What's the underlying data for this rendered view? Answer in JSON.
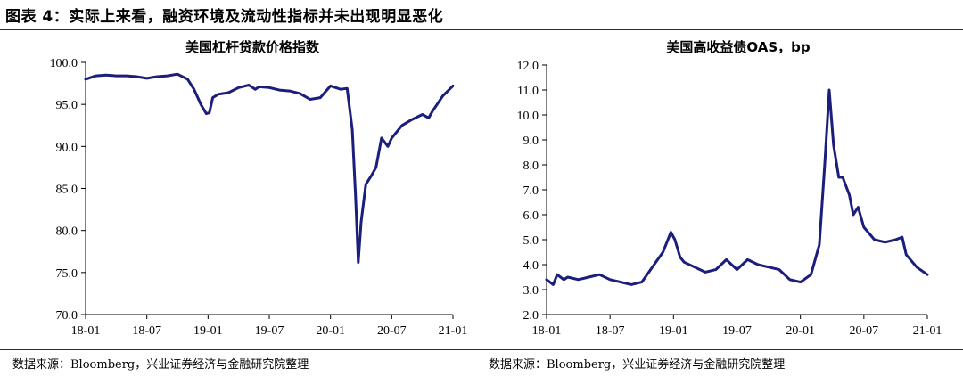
{
  "figure": {
    "title": "图表 4：实际上来看，融资环境及流动性指标并未出现明显恶化",
    "accent_color": "#1f2a5a",
    "line_color": "#1b1e7a"
  },
  "sources": {
    "left": "数据来源：Bloomberg，兴业证券经济与金融研究院整理",
    "right": "数据来源：Bloomberg，兴业证券经济与金融研究院整理"
  },
  "chart_data": [
    {
      "type": "line",
      "title": "美国杠杆贷款价格指数",
      "xlabel": "",
      "ylabel": "",
      "ylim": [
        70,
        100
      ],
      "yticks": [
        "70.0",
        "75.0",
        "80.0",
        "85.0",
        "90.0",
        "95.0",
        "100.0"
      ],
      "xticks": [
        "18-01",
        "18-07",
        "19-01",
        "19-07",
        "20-01",
        "20-07",
        "21-01"
      ],
      "xrange": [
        "2018-01",
        "2021-01"
      ],
      "grid": false,
      "series": [
        {
          "points": [
            [
              "2018-01",
              98.0
            ],
            [
              "2018-02",
              98.4
            ],
            [
              "2018-03",
              98.5
            ],
            [
              "2018-04",
              98.4
            ],
            [
              "2018-05",
              98.4
            ],
            [
              "2018-06",
              98.3
            ],
            [
              "2018-07",
              98.1
            ],
            [
              "2018-08",
              98.3
            ],
            [
              "2018-09",
              98.4
            ],
            [
              "2018-10",
              98.6
            ],
            [
              "2018-11",
              98.0
            ],
            [
              "2018-11-20",
              96.8
            ],
            [
              "2018-12-10",
              95.0
            ],
            [
              "2018-12-26",
              93.9
            ],
            [
              "2019-01-05",
              94.0
            ],
            [
              "2019-01-15",
              95.8
            ],
            [
              "2019-02",
              96.2
            ],
            [
              "2019-03",
              96.4
            ],
            [
              "2019-04",
              97.0
            ],
            [
              "2019-05",
              97.3
            ],
            [
              "2019-05-20",
              96.8
            ],
            [
              "2019-06",
              97.1
            ],
            [
              "2019-07",
              97.0
            ],
            [
              "2019-08",
              96.7
            ],
            [
              "2019-09",
              96.6
            ],
            [
              "2019-10",
              96.3
            ],
            [
              "2019-11",
              95.6
            ],
            [
              "2019-12",
              95.8
            ],
            [
              "2020-01",
              97.2
            ],
            [
              "2020-02",
              96.8
            ],
            [
              "2020-02-20",
              96.9
            ],
            [
              "2020-03-05",
              92.0
            ],
            [
              "2020-03-15",
              84.0
            ],
            [
              "2020-03-23",
              76.2
            ],
            [
              "2020-04-01",
              81.0
            ],
            [
              "2020-04-15",
              85.5
            ],
            [
              "2020-05",
              86.5
            ],
            [
              "2020-05-15",
              87.5
            ],
            [
              "2020-06",
              91.0
            ],
            [
              "2020-06-20",
              90.0
            ],
            [
              "2020-07",
              91.0
            ],
            [
              "2020-08",
              92.5
            ],
            [
              "2020-09",
              93.2
            ],
            [
              "2020-10",
              93.8
            ],
            [
              "2020-10-20",
              93.4
            ],
            [
              "2020-11",
              94.2
            ],
            [
              "2020-12",
              96.0
            ],
            [
              "2021-01",
              97.2
            ]
          ]
        }
      ]
    },
    {
      "type": "line",
      "title": "美国高收益债OAS，bp",
      "xlabel": "",
      "ylabel": "",
      "ylim": [
        2.0,
        12.0
      ],
      "yticks": [
        "2.0",
        "3.0",
        "4.0",
        "5.0",
        "6.0",
        "7.0",
        "8.0",
        "9.0",
        "10.0",
        "11.0",
        "12.0"
      ],
      "xticks": [
        "18-01",
        "18-07",
        "19-01",
        "19-07",
        "20-01",
        "20-07",
        "21-01"
      ],
      "xrange": [
        "2018-01",
        "2021-01"
      ],
      "grid": false,
      "series": [
        {
          "points": [
            [
              "2018-01",
              3.4
            ],
            [
              "2018-01-20",
              3.2
            ],
            [
              "2018-02",
              3.6
            ],
            [
              "2018-02-20",
              3.4
            ],
            [
              "2018-03",
              3.5
            ],
            [
              "2018-04",
              3.4
            ],
            [
              "2018-05",
              3.5
            ],
            [
              "2018-06",
              3.6
            ],
            [
              "2018-07",
              3.4
            ],
            [
              "2018-08",
              3.3
            ],
            [
              "2018-09",
              3.2
            ],
            [
              "2018-10",
              3.3
            ],
            [
              "2018-11",
              3.9
            ],
            [
              "2018-12",
              4.5
            ],
            [
              "2018-12-24",
              5.3
            ],
            [
              "2019-01-05",
              5.0
            ],
            [
              "2019-01-20",
              4.3
            ],
            [
              "2019-02",
              4.1
            ],
            [
              "2019-03",
              3.9
            ],
            [
              "2019-04",
              3.7
            ],
            [
              "2019-05",
              3.8
            ],
            [
              "2019-06",
              4.2
            ],
            [
              "2019-07",
              3.8
            ],
            [
              "2019-08",
              4.2
            ],
            [
              "2019-09",
              4.0
            ],
            [
              "2019-10",
              3.9
            ],
            [
              "2019-11",
              3.8
            ],
            [
              "2019-12",
              3.4
            ],
            [
              "2020-01",
              3.3
            ],
            [
              "2020-02",
              3.6
            ],
            [
              "2020-02-25",
              4.8
            ],
            [
              "2020-03-10",
              8.0
            ],
            [
              "2020-03-23",
              11.0
            ],
            [
              "2020-04-05",
              8.8
            ],
            [
              "2020-04-20",
              7.5
            ],
            [
              "2020-05",
              7.5
            ],
            [
              "2020-05-20",
              6.8
            ],
            [
              "2020-06",
              6.0
            ],
            [
              "2020-06-15",
              6.3
            ],
            [
              "2020-07",
              5.5
            ],
            [
              "2020-08",
              5.0
            ],
            [
              "2020-09",
              4.9
            ],
            [
              "2020-10",
              5.0
            ],
            [
              "2020-10-20",
              5.1
            ],
            [
              "2020-11",
              4.4
            ],
            [
              "2020-12",
              3.9
            ],
            [
              "2021-01",
              3.6
            ]
          ]
        }
      ]
    }
  ]
}
